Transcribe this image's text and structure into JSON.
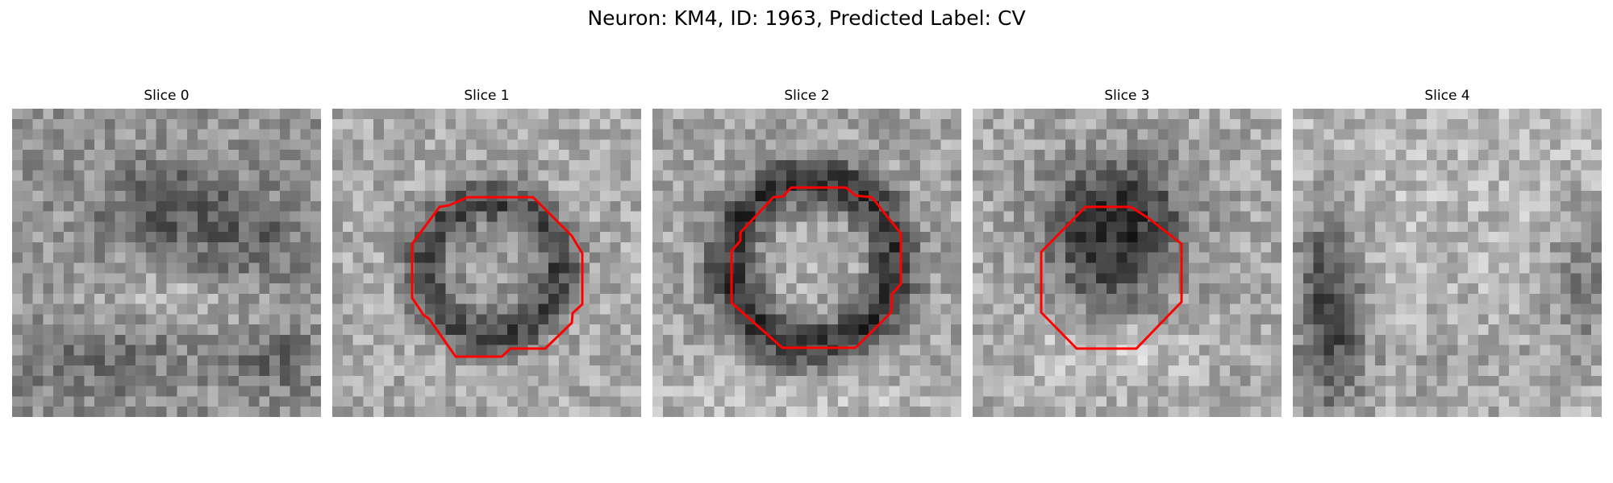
{
  "figure": {
    "title": "Neuron: KM4, ID: 1963, Predicted Label: CV"
  },
  "panels": [
    {
      "title": "Slice 0",
      "has_contour": false
    },
    {
      "title": "Slice 1",
      "has_contour": true
    },
    {
      "title": "Slice 2",
      "has_contour": true
    },
    {
      "title": "Slice 3",
      "has_contour": true
    },
    {
      "title": "Slice 4",
      "has_contour": false
    }
  ],
  "colors": {
    "contour": "#ff0000",
    "background": "#ffffff"
  }
}
